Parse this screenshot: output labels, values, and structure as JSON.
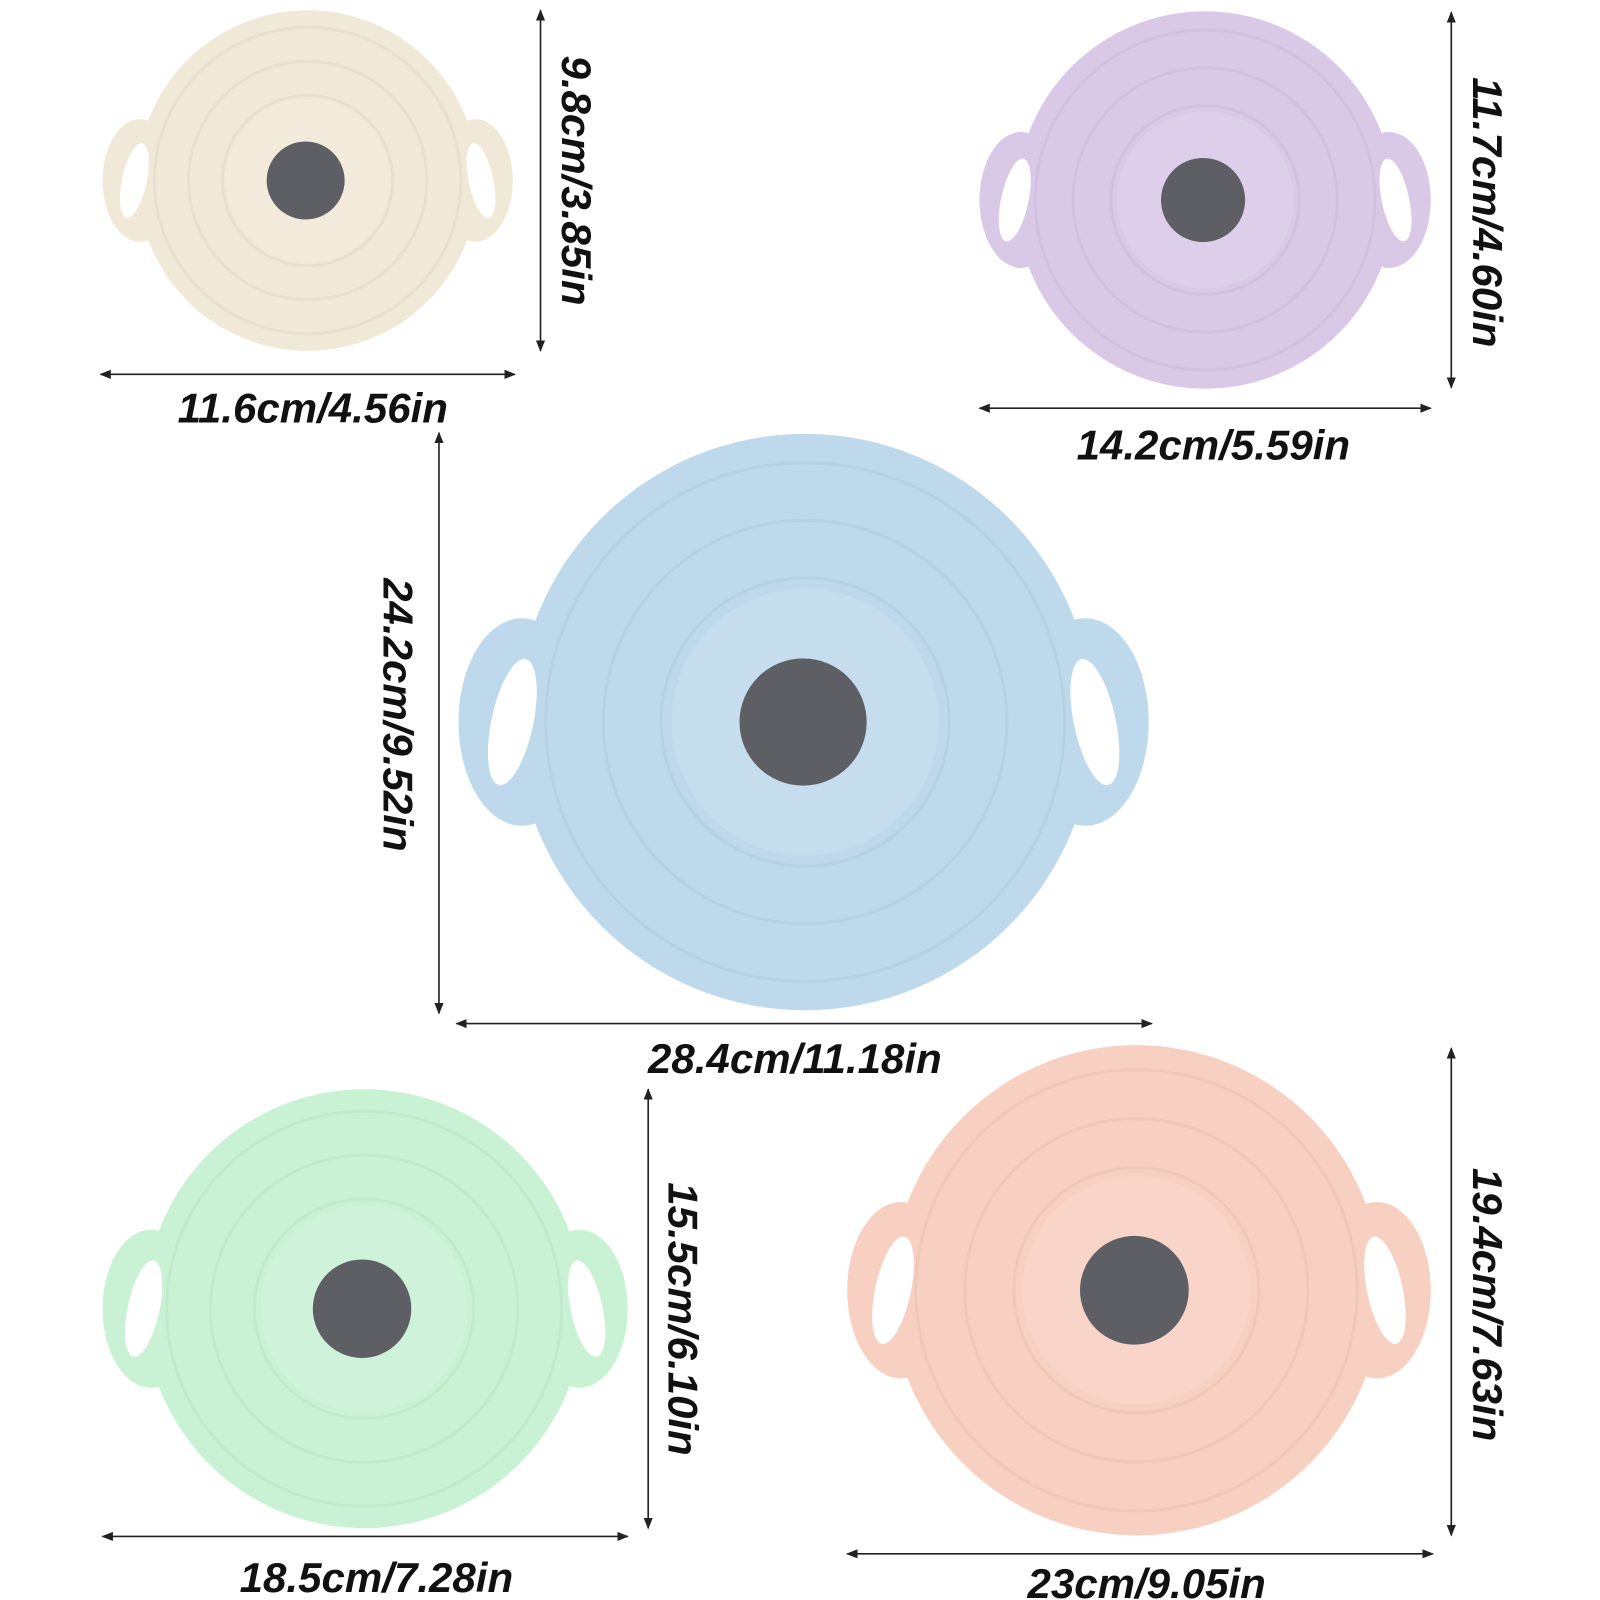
{
  "colors": {
    "knob": "#5e5f65",
    "arrow": "#222222",
    "background": "#ffffff"
  },
  "lids": [
    {
      "name": "beige-lid",
      "color": "#f1e9d7",
      "width_label": "11.6cm/4.56in",
      "height_label": "9.8cm/3.85in"
    },
    {
      "name": "purple-lid",
      "color": "#d9c9e7",
      "width_label": "14.2cm/5.59in",
      "height_label": "11.7cm/4.60in"
    },
    {
      "name": "blue-lid",
      "color": "#bdd9eb",
      "width_label": "28.4cm/11.18in",
      "height_label": "24.2cm/9.52in"
    },
    {
      "name": "green-lid",
      "color": "#c9f2d5",
      "width_label": "18.5cm/7.28in",
      "height_label": "15.5cm/6.10in"
    },
    {
      "name": "peach-lid",
      "color": "#f8d0c1",
      "width_label": "23cm/9.05in",
      "height_label": "19.4cm/7.63in"
    }
  ]
}
